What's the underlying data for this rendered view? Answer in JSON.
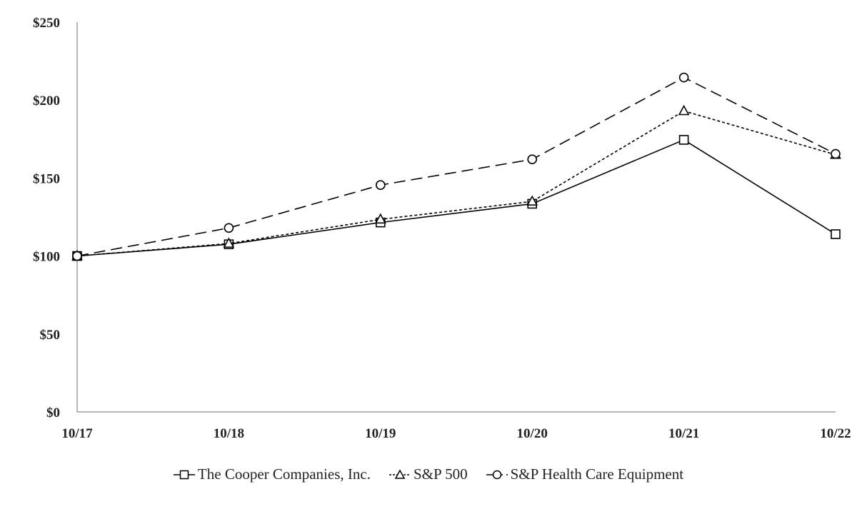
{
  "chart_data": {
    "type": "line",
    "x": [
      "10/17",
      "10/18",
      "10/19",
      "10/20",
      "10/21",
      "10/22"
    ],
    "yticks": [
      "$0",
      "$50",
      "$100",
      "$150",
      "$200",
      "$250"
    ],
    "ylim": [
      0,
      250
    ],
    "grid": false,
    "legend_position": "bottom",
    "series": [
      {
        "name": "The Cooper Companies, Inc.",
        "marker": "square",
        "dash": "solid",
        "values": [
          100,
          107.5,
          121.5,
          133.5,
          174.5,
          114
        ]
      },
      {
        "name": "S&P 500",
        "marker": "triangle",
        "dash": "dotted",
        "values": [
          100,
          108,
          123.5,
          135,
          193,
          165
        ]
      },
      {
        "name": "S&P Health Care Equipment",
        "marker": "circle",
        "dash": "dashed",
        "values": [
          100,
          118,
          145.5,
          162,
          214.5,
          165.5
        ]
      }
    ],
    "colors": {
      "line": "#000000",
      "axis": "#888888",
      "text": "#222222"
    }
  }
}
